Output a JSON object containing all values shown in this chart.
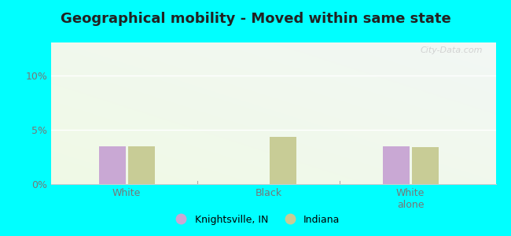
{
  "title": "Geographical mobility - Moved within same state",
  "categories": [
    "White",
    "Black",
    "White\nalone"
  ],
  "knightsville_values": [
    3.5,
    0.0,
    3.5
  ],
  "indiana_values": [
    3.5,
    4.3,
    3.4
  ],
  "knightsville_color": "#c9a8d4",
  "indiana_color": "#c8cc96",
  "ylim_max": 13,
  "yticks": [
    0,
    5,
    10
  ],
  "ytick_labels": [
    "0%",
    "5%",
    "10%"
  ],
  "background_color": "#00ffff",
  "legend_knightsville": "Knightsville, IN",
  "legend_indiana": "Indiana",
  "bar_width": 0.28,
  "group_positions": [
    1.0,
    2.5,
    4.0
  ],
  "xlim": [
    0.2,
    4.9
  ],
  "title_fontsize": 13,
  "tick_fontsize": 9,
  "legend_fontsize": 9
}
